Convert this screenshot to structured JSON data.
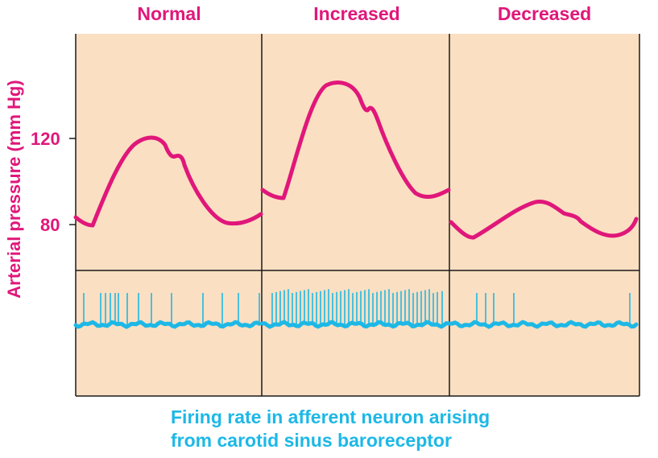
{
  "panels": [
    {
      "title": "Normal"
    },
    {
      "title": "Increased"
    },
    {
      "title": "Decreased"
    }
  ],
  "y_axis": {
    "title": "Arterial pressure (mm Hg)",
    "ticks": [
      "120",
      "80"
    ]
  },
  "caption": {
    "line1": "Firing rate in afferent neuron arising",
    "line2": "from carotid sinus baroreceptor"
  },
  "colors": {
    "background": "#fbdfc2",
    "pressure_trace": "#e0177a",
    "firing_trace": "#1db8e6",
    "border": "#1a1a1a",
    "label_magenta": "#e0177a",
    "label_cyan": "#1db8e6"
  }
}
